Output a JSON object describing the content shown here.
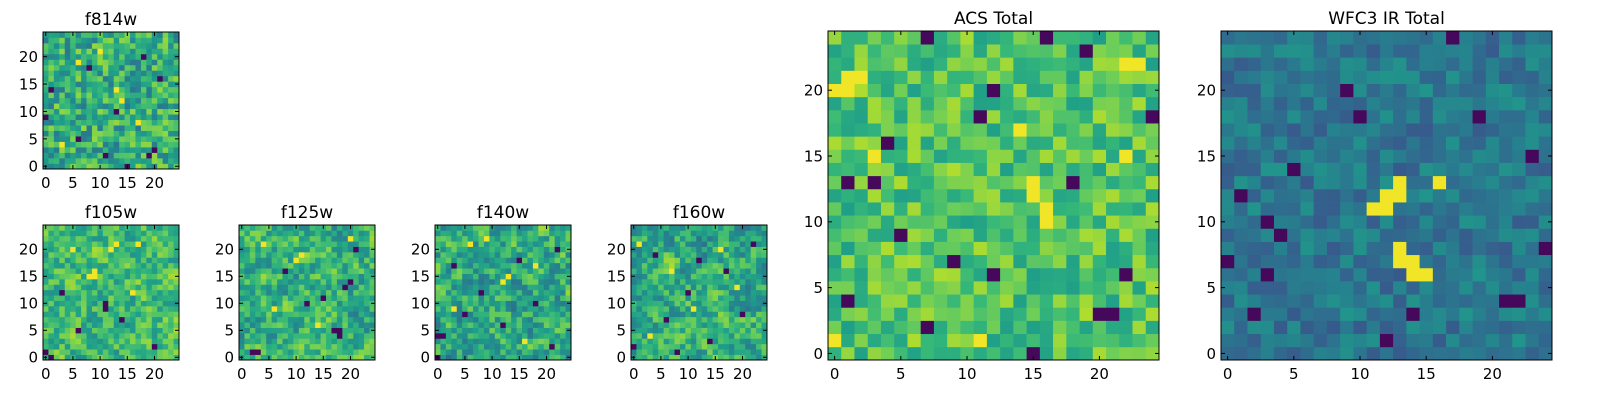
{
  "chart_data": [
    {
      "type": "heatmap",
      "title": "f814w",
      "colormap": "viridis",
      "grid_size": 24,
      "xlim": [
        0,
        24
      ],
      "ylim": [
        0,
        24
      ],
      "xticks": [
        "0",
        "5",
        "10",
        "15",
        "20"
      ],
      "yticks": [
        "0",
        "5",
        "10",
        "15",
        "20"
      ],
      "seed": 11,
      "mean": 0.62,
      "spread": 0.22,
      "smooth": 0,
      "low_pixels": [
        [
          0,
          9
        ],
        [
          1,
          14
        ],
        [
          6,
          5
        ],
        [
          8,
          18
        ],
        [
          11,
          2
        ],
        [
          13,
          10
        ],
        [
          15,
          0
        ],
        [
          18,
          20
        ],
        [
          19,
          2
        ],
        [
          20,
          3
        ],
        [
          21,
          16
        ]
      ],
      "high_pixels": [
        [
          13,
          14
        ],
        [
          14,
          12
        ],
        [
          6,
          19
        ],
        [
          17,
          8
        ],
        [
          3,
          4
        ],
        [
          10,
          21
        ]
      ]
    },
    {
      "type": "heatmap",
      "title": "f105w",
      "colormap": "viridis",
      "grid_size": 24,
      "xlim": [
        0,
        24
      ],
      "ylim": [
        0,
        24
      ],
      "xticks": [
        "0",
        "5",
        "10",
        "15",
        "20"
      ],
      "yticks": [
        "0",
        "5",
        "10",
        "15",
        "20"
      ],
      "seed": 23,
      "mean": 0.68,
      "spread": 0.3,
      "smooth": 1,
      "low_pixels": [
        [
          0,
          1
        ],
        [
          1,
          0
        ],
        [
          11,
          9
        ],
        [
          11,
          10
        ],
        [
          14,
          7
        ],
        [
          6,
          5
        ],
        [
          20,
          2
        ],
        [
          3,
          12
        ]
      ],
      "high_pixels": [
        [
          8,
          15
        ],
        [
          9,
          15
        ],
        [
          9,
          16
        ],
        [
          12,
          20
        ],
        [
          13,
          21
        ],
        [
          17,
          21
        ],
        [
          16,
          12
        ],
        [
          5,
          20
        ]
      ]
    },
    {
      "type": "heatmap",
      "title": "f125w",
      "colormap": "viridis",
      "grid_size": 24,
      "xlim": [
        0,
        24
      ],
      "ylim": [
        0,
        24
      ],
      "xticks": [
        "0",
        "5",
        "10",
        "15",
        "20"
      ],
      "yticks": [
        "0",
        "5",
        "10",
        "15",
        "20"
      ],
      "seed": 37,
      "mean": 0.64,
      "spread": 0.32,
      "smooth": 1,
      "low_pixels": [
        [
          17,
          5
        ],
        [
          18,
          4
        ],
        [
          18,
          5
        ],
        [
          19,
          13
        ],
        [
          20,
          14
        ],
        [
          15,
          11
        ],
        [
          12,
          10
        ],
        [
          2,
          1
        ],
        [
          3,
          1
        ],
        [
          8,
          16
        ],
        [
          21,
          20
        ]
      ],
      "high_pixels": [
        [
          10,
          18
        ],
        [
          11,
          19
        ],
        [
          4,
          21
        ],
        [
          14,
          6
        ],
        [
          6,
          9
        ],
        [
          20,
          22
        ]
      ]
    },
    {
      "type": "heatmap",
      "title": "f140w",
      "colormap": "viridis",
      "grid_size": 24,
      "xlim": [
        0,
        24
      ],
      "ylim": [
        0,
        24
      ],
      "xticks": [
        "0",
        "5",
        "10",
        "15",
        "20"
      ],
      "yticks": [
        "0",
        "5",
        "10",
        "15",
        "20"
      ],
      "seed": 41,
      "mean": 0.6,
      "spread": 0.34,
      "smooth": 1,
      "low_pixels": [
        [
          0,
          4
        ],
        [
          1,
          4
        ],
        [
          0,
          0
        ],
        [
          5,
          8
        ],
        [
          8,
          12
        ],
        [
          12,
          6
        ],
        [
          15,
          18
        ],
        [
          18,
          10
        ],
        [
          21,
          2
        ],
        [
          22,
          20
        ],
        [
          3,
          17
        ]
      ],
      "high_pixels": [
        [
          6,
          21
        ],
        [
          9,
          22
        ],
        [
          12,
          14
        ],
        [
          13,
          15
        ],
        [
          18,
          17
        ],
        [
          16,
          3
        ],
        [
          3,
          9
        ]
      ]
    },
    {
      "type": "heatmap",
      "title": "f160w",
      "colormap": "viridis",
      "grid_size": 24,
      "xlim": [
        0,
        24
      ],
      "ylim": [
        0,
        24
      ],
      "xticks": [
        "0",
        "5",
        "10",
        "15",
        "20"
      ],
      "yticks": [
        "0",
        "5",
        "10",
        "15",
        "20"
      ],
      "seed": 53,
      "mean": 0.62,
      "spread": 0.32,
      "smooth": 1,
      "low_pixels": [
        [
          0,
          2
        ],
        [
          4,
          19
        ],
        [
          6,
          7
        ],
        [
          10,
          12
        ],
        [
          14,
          3
        ],
        [
          17,
          16
        ],
        [
          20,
          8
        ],
        [
          22,
          21
        ],
        [
          8,
          1
        ],
        [
          12,
          18
        ]
      ],
      "high_pixels": [
        [
          1,
          21
        ],
        [
          7,
          16
        ],
        [
          11,
          9
        ],
        [
          16,
          20
        ],
        [
          19,
          13
        ],
        [
          3,
          4
        ]
      ]
    },
    {
      "type": "heatmap",
      "title": "ACS Total",
      "colormap": "viridis",
      "grid_size": 24,
      "xlim": [
        0,
        24
      ],
      "ylim": [
        0,
        24
      ],
      "xticks": [
        "0",
        "5",
        "10",
        "15",
        "20"
      ],
      "yticks": [
        "0",
        "5",
        "10",
        "15",
        "20"
      ],
      "seed": 67,
      "mean": 0.72,
      "spread": 0.16,
      "smooth": 0,
      "low_pixels": [
        [
          1,
          13
        ],
        [
          3,
          13
        ],
        [
          7,
          24
        ],
        [
          1,
          4
        ],
        [
          7,
          2
        ],
        [
          11,
          18
        ],
        [
          12,
          20
        ],
        [
          15,
          0
        ],
        [
          16,
          24
        ],
        [
          20,
          3
        ],
        [
          21,
          3
        ],
        [
          24,
          18
        ],
        [
          5,
          9
        ],
        [
          9,
          7
        ],
        [
          18,
          13
        ],
        [
          22,
          6
        ],
        [
          12,
          6
        ],
        [
          4,
          16
        ],
        [
          19,
          23
        ]
      ],
      "high_pixels": [
        [
          0,
          20
        ],
        [
          1,
          20
        ],
        [
          1,
          21
        ],
        [
          2,
          21
        ],
        [
          15,
          13
        ],
        [
          15,
          12
        ],
        [
          16,
          11
        ],
        [
          16,
          10
        ],
        [
          14,
          17
        ],
        [
          22,
          22
        ],
        [
          23,
          22
        ],
        [
          11,
          1
        ],
        [
          3,
          15
        ],
        [
          22,
          15
        ],
        [
          0,
          1
        ]
      ]
    },
    {
      "type": "heatmap",
      "title": "WFC3 IR Total",
      "colormap": "viridis",
      "grid_size": 24,
      "xlim": [
        0,
        24
      ],
      "ylim": [
        0,
        24
      ],
      "xticks": [
        "0",
        "5",
        "10",
        "15",
        "20"
      ],
      "yticks": [
        "0",
        "5",
        "10",
        "15",
        "20"
      ],
      "seed": 79,
      "mean": 0.4,
      "spread": 0.12,
      "smooth": 0,
      "low_pixels": [
        [
          1,
          12
        ],
        [
          3,
          10
        ],
        [
          4,
          9
        ],
        [
          0,
          7
        ],
        [
          17,
          24
        ],
        [
          9,
          20
        ],
        [
          10,
          18
        ],
        [
          5,
          14
        ],
        [
          2,
          3
        ],
        [
          21,
          4
        ],
        [
          22,
          4
        ],
        [
          24,
          8
        ],
        [
          12,
          1
        ],
        [
          3,
          6
        ],
        [
          14,
          3
        ],
        [
          19,
          18
        ],
        [
          23,
          15
        ]
      ],
      "high_pixels": [
        [
          12,
          12
        ],
        [
          13,
          12
        ],
        [
          13,
          13
        ],
        [
          12,
          11
        ],
        [
          11,
          11
        ],
        [
          13,
          7
        ],
        [
          14,
          7
        ],
        [
          14,
          6
        ],
        [
          15,
          6
        ],
        [
          13,
          8
        ],
        [
          16,
          13
        ]
      ]
    }
  ]
}
